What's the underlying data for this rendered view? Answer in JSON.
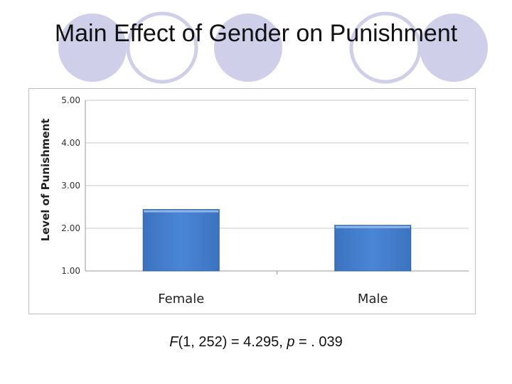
{
  "slide": {
    "title": "Main Effect of Gender on Punishment",
    "decoration_color": "#cfcfea",
    "statistic": {
      "f_symbol": "F",
      "f_args": "(1, 252) = 4.295, ",
      "p_symbol": "p",
      "p_value": " = . 039"
    }
  },
  "chart_data": {
    "type": "bar",
    "title": "",
    "xlabel": "",
    "ylabel": "Level of Punishment",
    "categories": [
      "Female",
      "Male"
    ],
    "values": [
      2.44,
      2.07
    ],
    "ylim": [
      1.0,
      5.0
    ],
    "yticks": [
      "1.00",
      "2.00",
      "3.00",
      "4.00",
      "5.00"
    ],
    "grid": true,
    "legend": "none",
    "bar_color": "#4a86d6",
    "bar_edge_color": "#2f5f9e"
  }
}
